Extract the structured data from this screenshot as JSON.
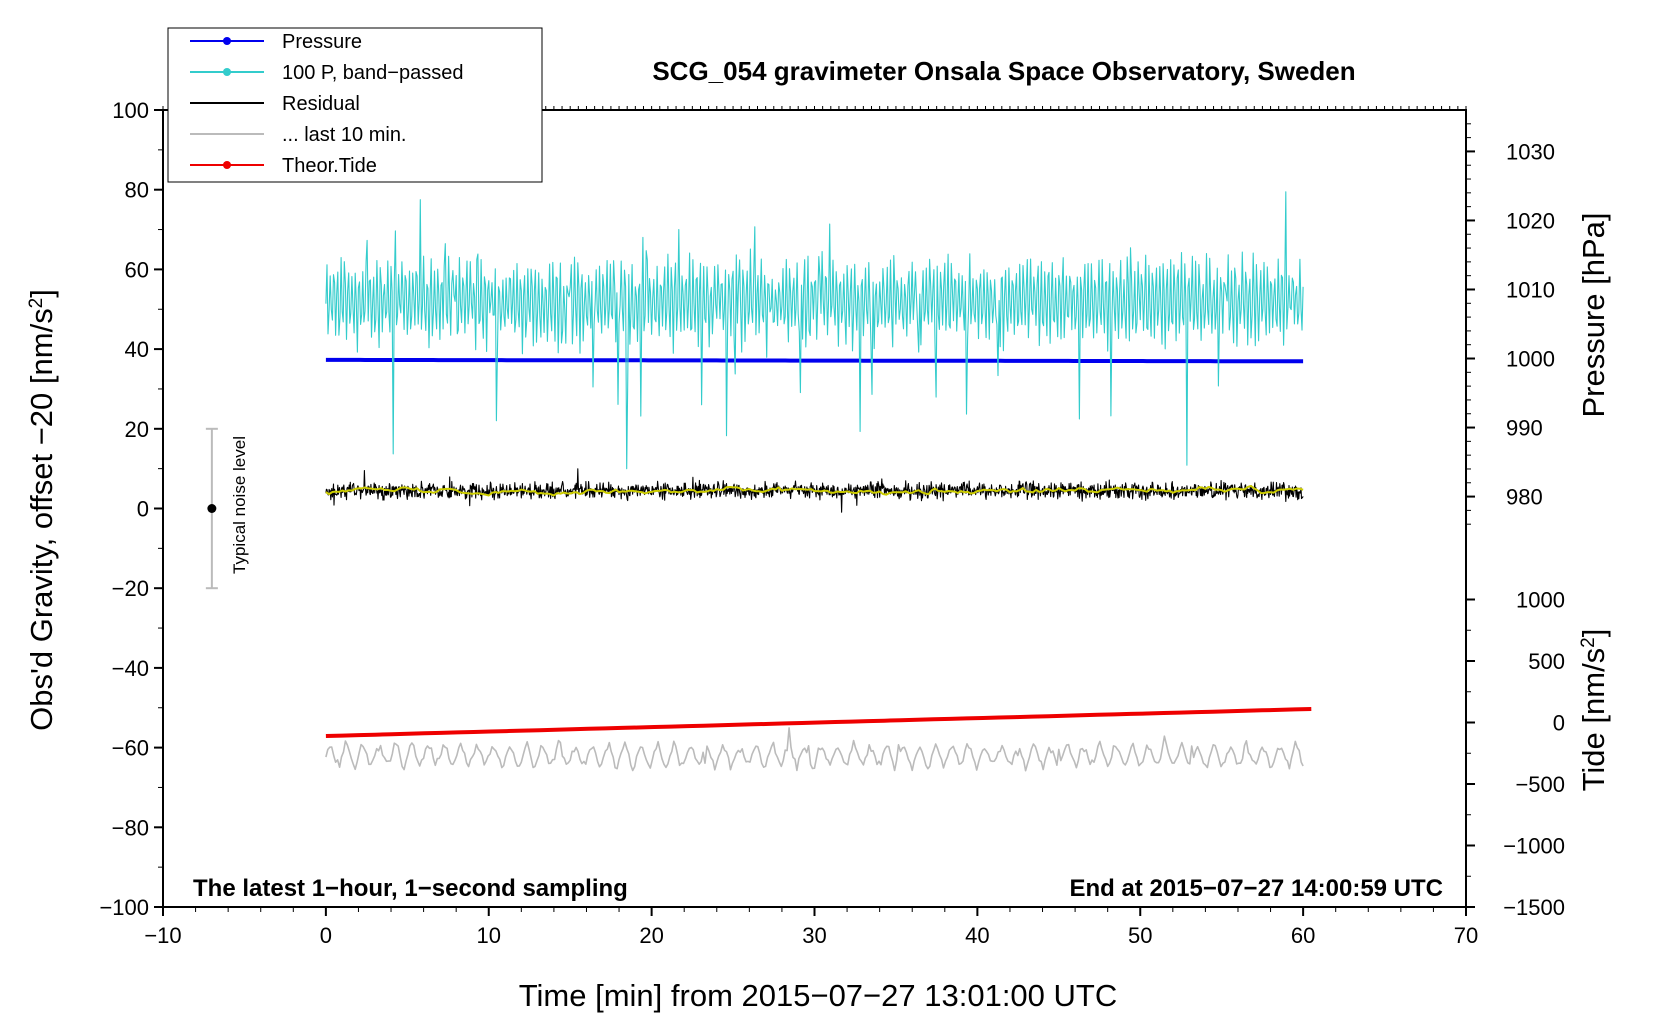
{
  "chart_data": {
    "type": "line",
    "title": "SCG_054 gravimeter Onsala Space Observatory, Sweden",
    "xlabel": "Time [min] from 2015−07−27 13:01:00 UTC",
    "ylabel": "Obs'd Gravity, offset −20 [nm/s",
    "ylabel_sup": "2",
    "ylabel_end": "]",
    "y2label": "Pressure [hPa]",
    "y3label": "Tide [nm/s",
    "y3label_sup": "2",
    "y3label_end": "]",
    "xlim": [
      -10,
      70
    ],
    "ylim": [
      -100,
      100
    ],
    "y2lim": [
      974,
      1036
    ],
    "y3lim": [
      -1500,
      1500
    ],
    "x_ticks": [
      -10,
      0,
      10,
      20,
      30,
      40,
      50,
      60,
      70
    ],
    "x_tick_labels": [
      "−10",
      "0",
      "10",
      "20",
      "30",
      "40",
      "50",
      "60",
      "70"
    ],
    "y_ticks": [
      -100,
      -80,
      -60,
      -40,
      -20,
      0,
      20,
      40,
      60,
      80,
      100
    ],
    "y_tick_labels": [
      "−100",
      "−80",
      "−60",
      "−40",
      "−20",
      "0",
      "20",
      "40",
      "60",
      "80",
      "100"
    ],
    "y2_ticks": [
      980,
      990,
      1000,
      1010,
      1020,
      1030
    ],
    "y2_tick_labels": [
      "980",
      "990",
      "1000",
      "1010",
      "1020",
      "1030"
    ],
    "y3_ticks": [
      -1500,
      -1000,
      -500,
      0,
      500,
      1000
    ],
    "y3_tick_labels": [
      "−1500",
      "−1000",
      "−500",
      "0",
      "500",
      "1000"
    ],
    "legend": [
      {
        "label": "Pressure",
        "color": "#0000ee",
        "marker": true
      },
      {
        "label": "100 P, band−passed",
        "color": "#33cccc",
        "marker": true
      },
      {
        "label": "Residual",
        "color": "#000000",
        "marker": false
      },
      {
        "label": "... last 10 min.",
        "color": "#bbbbbb",
        "marker": false
      },
      {
        "label": "Theor.Tide",
        "color": "#ee0000",
        "marker": true
      }
    ],
    "legend_position": "top-left",
    "series": [
      {
        "name": "Pressure",
        "axis": "y2",
        "color": "#0000ee",
        "x_range": [
          0,
          60
        ],
        "start": 999.8,
        "end": 999.6,
        "unit": "hPa"
      },
      {
        "name": "100 P, band-passed",
        "axis": "y",
        "color": "#33cccc",
        "x_range": [
          0,
          60
        ],
        "mean": 52,
        "amplitude": 8
      },
      {
        "name": "Residual",
        "axis": "y",
        "color": "#000000",
        "x_range": [
          0,
          60
        ],
        "mean": 4.5,
        "amplitude": 3
      },
      {
        "name": "Residual (smoothed)",
        "axis": "y",
        "color": "#cccc00",
        "x_range": [
          0,
          60
        ],
        "mean": 4.5,
        "amplitude": 1
      },
      {
        "name": "... last 10 min.",
        "axis": "y",
        "color": "#bbbbbb",
        "x_range": [
          0,
          60
        ],
        "mean": -62,
        "amplitude": 2.5
      },
      {
        "name": "Theor.Tide",
        "axis": "y3",
        "color": "#ee0000",
        "x_range": [
          0,
          60.5
        ],
        "start": -110,
        "end": 110,
        "unit": "nm/s2"
      }
    ],
    "noise_bar": {
      "label": "Typical noise level",
      "x": -7,
      "center": 0,
      "low": -20,
      "high": 20
    },
    "annotations": {
      "bottom_left": "The latest 1−hour, 1−second sampling",
      "bottom_right": "End at 2015−07−27 14:00:59 UTC"
    },
    "grid": false
  }
}
